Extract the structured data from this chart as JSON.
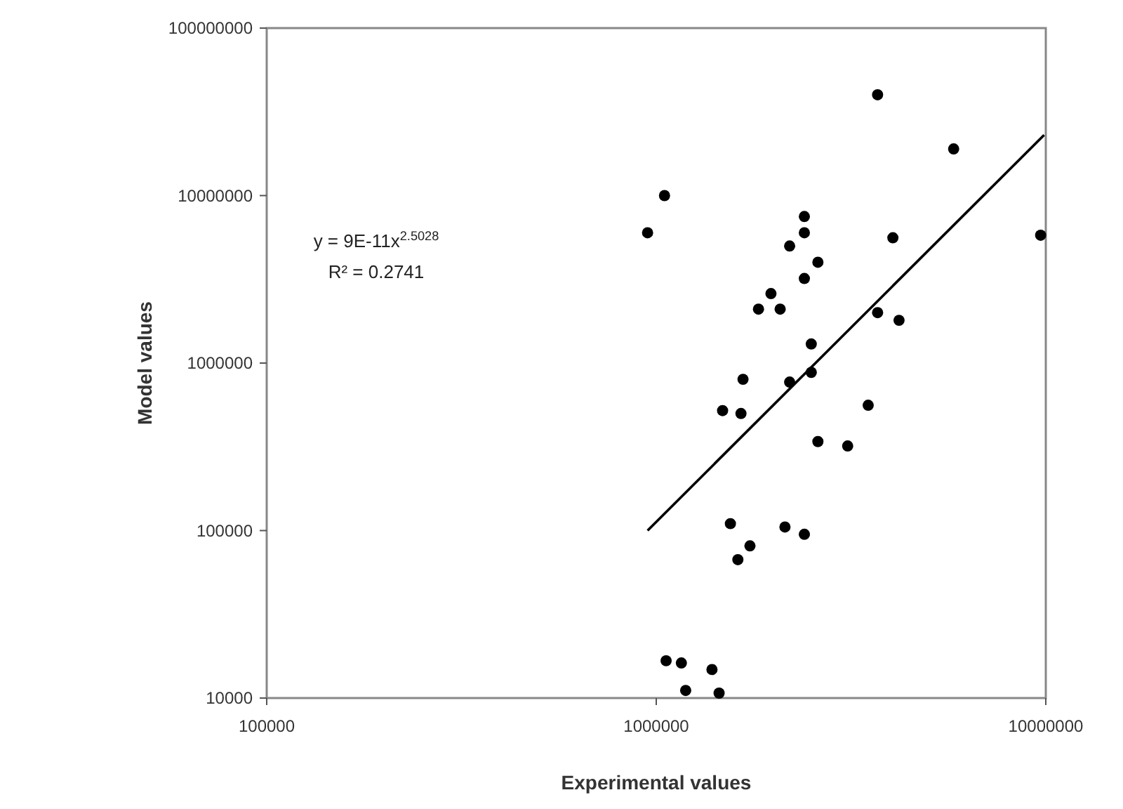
{
  "chart_data": {
    "type": "scatter",
    "xlabel": "Experimental values",
    "ylabel": "Model values",
    "log": "xy",
    "grid": false,
    "marker": "circle",
    "xlim": [
      100000,
      10000000
    ],
    "xticks": [
      100000,
      1000000,
      10000000
    ],
    "ylim": [
      10000,
      100000000
    ],
    "yticks": [
      10000,
      100000,
      1000000,
      10000000,
      100000000
    ],
    "annotations": [
      "y = 9E-11x$^{2.5028}$",
      "R² = 0.2741"
    ],
    "series": [
      {
        "color": "#000000",
        "x": [
          3700000,
          5800000,
          1050000,
          950000,
          2400000,
          2400000,
          2200000,
          4050000,
          9700000,
          2600000,
          2400000,
          1970000,
          1830000,
          2080000,
          3700000,
          4200000,
          2500000,
          1670000,
          2200000,
          2500000,
          1480000,
          1650000,
          3500000,
          2600000,
          3100000,
          1550000,
          2140000,
          2400000,
          1740000,
          1620000,
          1060000,
          1160000,
          1390000,
          1190000,
          1450000
        ],
        "values": [
          40000000,
          19000000,
          10000000,
          6000000,
          7500000,
          6000000,
          5000000,
          5600000,
          5800000,
          4000000,
          3200000,
          2600000,
          2100000,
          2100000,
          2000000,
          1800000,
          1300000,
          800000,
          770000,
          880000,
          520000,
          500000,
          560000,
          340000,
          320000,
          110000,
          105000,
          95000,
          81000,
          67000,
          16700,
          16200,
          14800,
          11100,
          10700
        ]
      },
      {
        "type": "line",
        "color": "#000000",
        "marker": "none",
        "x": [
          950000,
          9900000
        ],
        "values": [
          100000,
          23000000
        ]
      }
    ]
  }
}
